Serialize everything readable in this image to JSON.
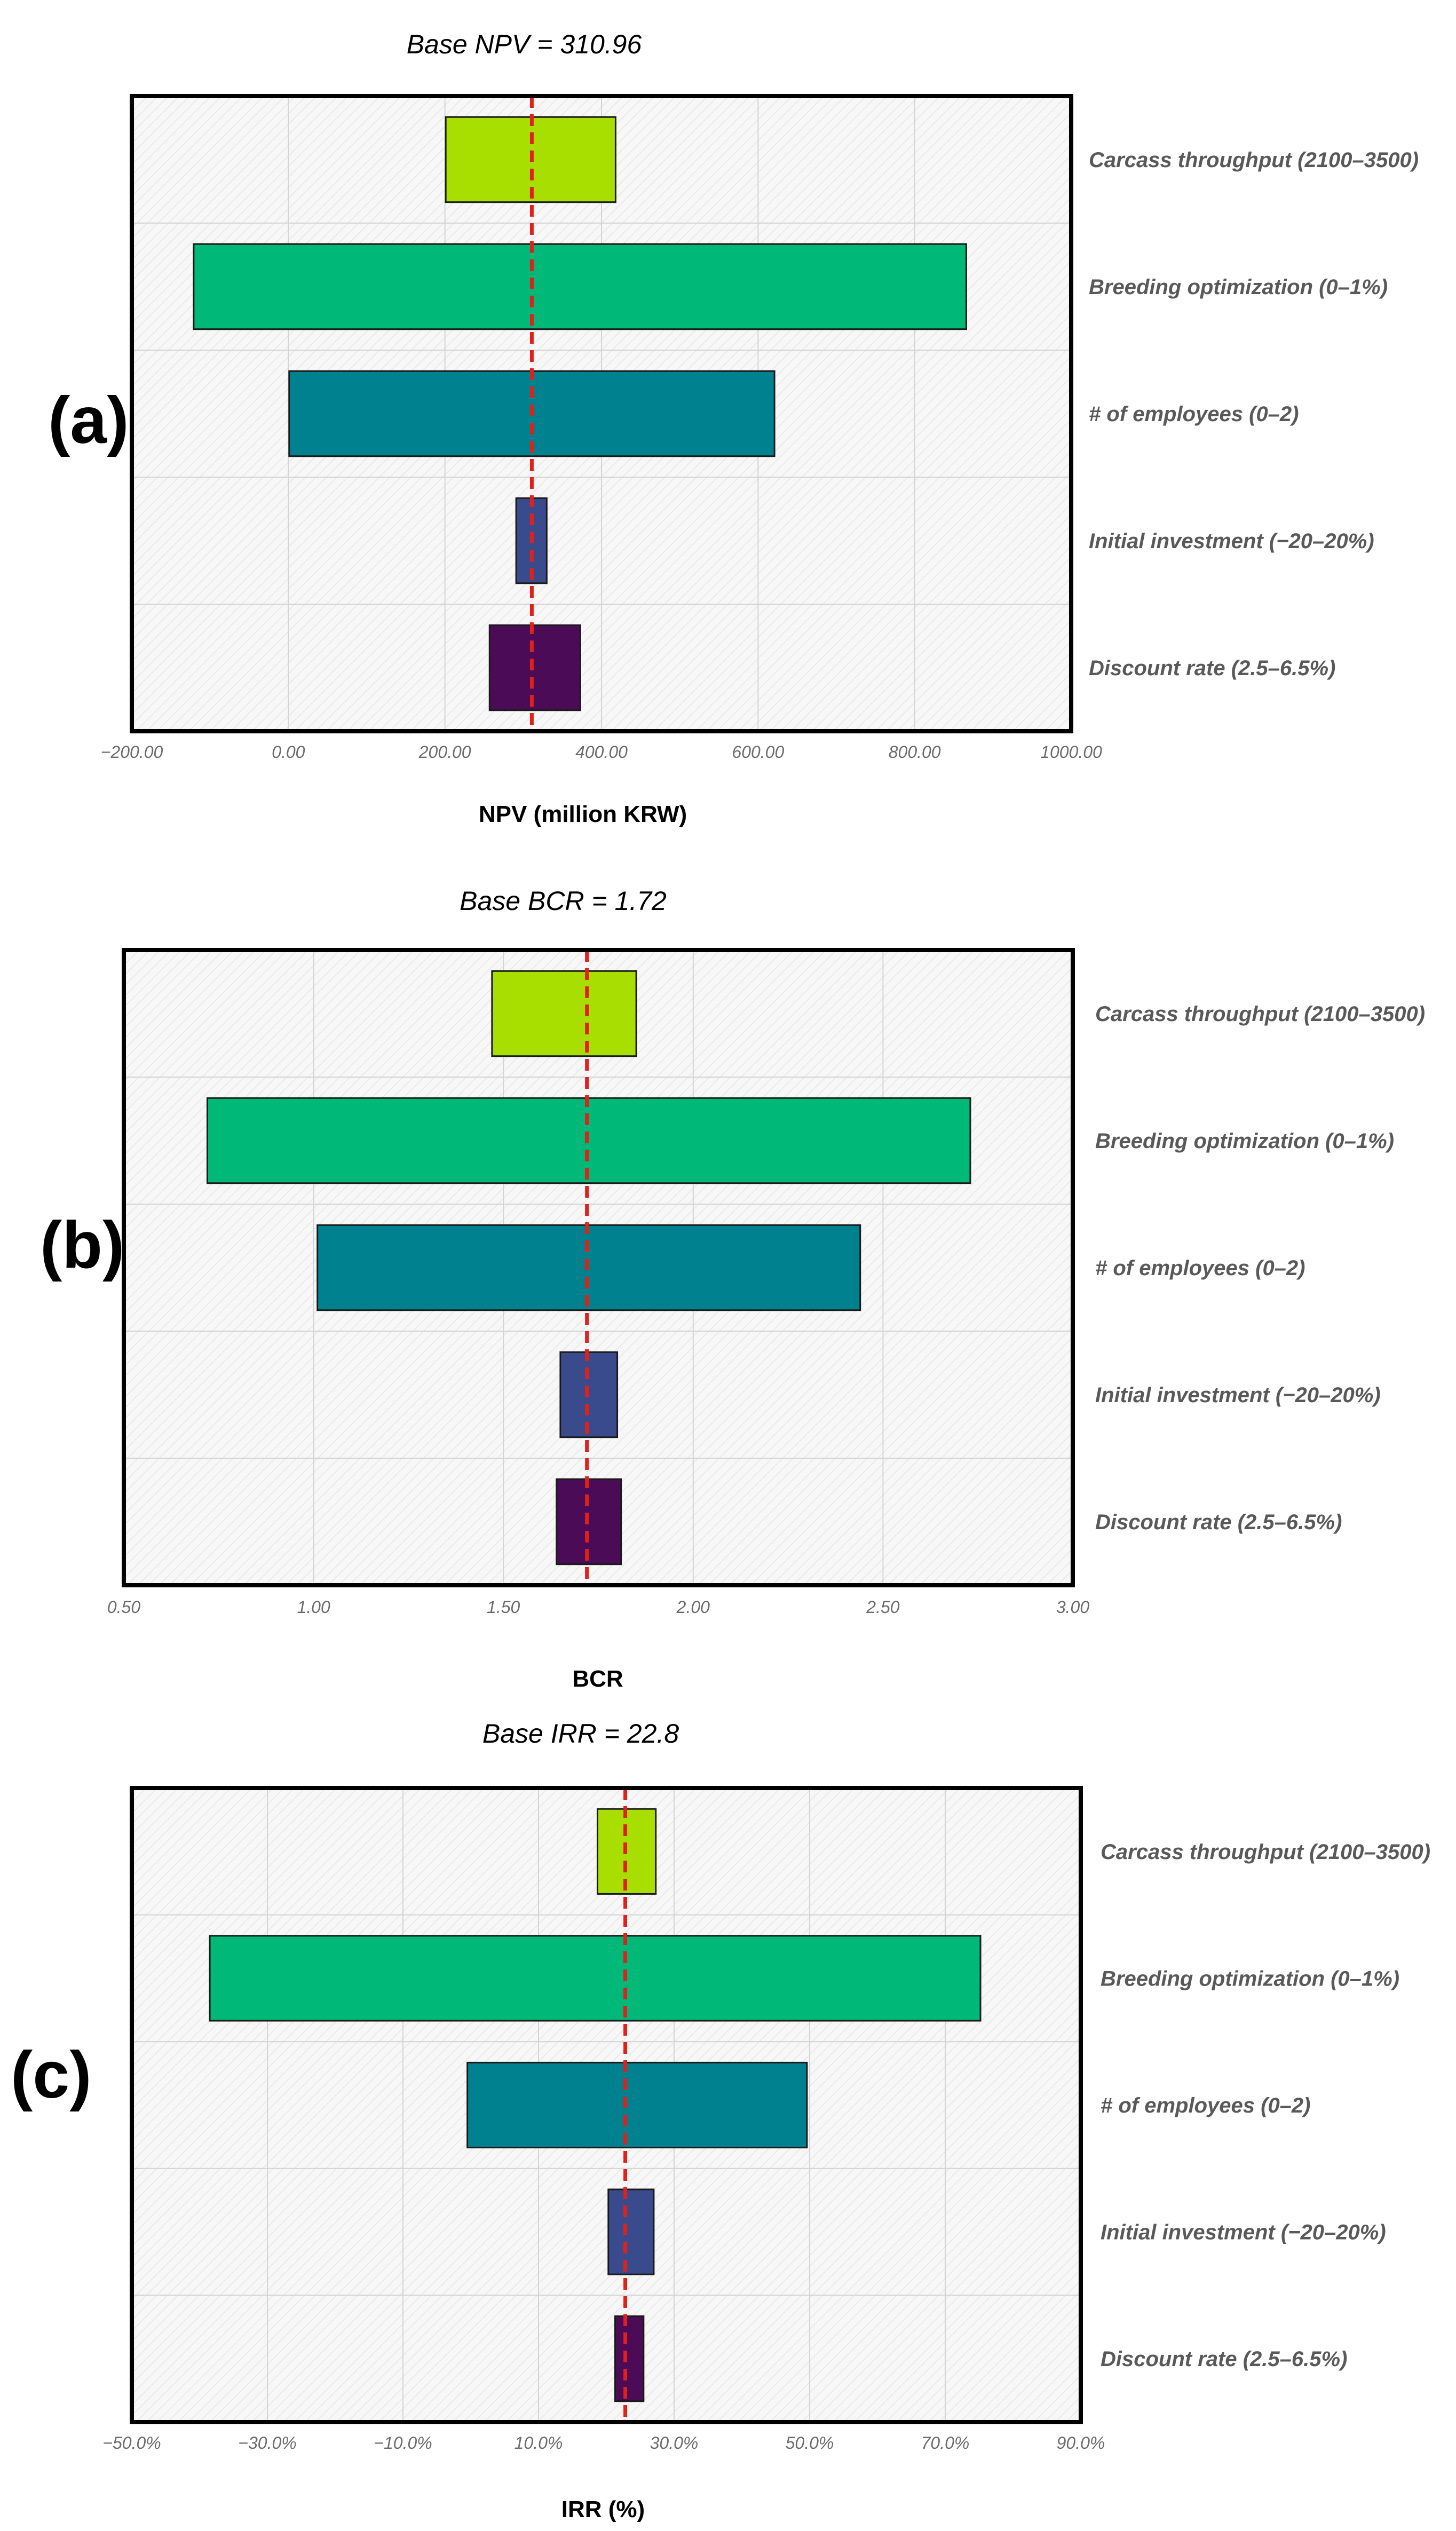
{
  "figure": {
    "panels": [
      "(a)",
      "(b)",
      "(c)"
    ]
  },
  "colors": {
    "base_line": "#e0201b",
    "frame": "#000000",
    "bar_stroke": "#1a1a1a",
    "label_text": "#595959",
    "axis_text": "#6b6b6b",
    "grid": "#d4d4d4",
    "plot_bg": "#f6f6f6"
  },
  "chart_data": [
    {
      "type": "bar",
      "orientation": "horizontal",
      "subtype": "tornado",
      "panel_label": "(a)",
      "title": "Base NPV = 310.96",
      "xlabel": "NPV (million KRW)",
      "ylabel": "",
      "base_value": 310.96,
      "xlim": [
        -200,
        1000
      ],
      "xticks": [
        -200,
        0,
        200,
        400,
        600,
        800,
        1000
      ],
      "xtick_labels": [
        "−200.00",
        "0.00",
        "200.00",
        "400.00",
        "600.00",
        "800.00",
        "1000.00"
      ],
      "categories": [
        "Carcass throughput (2100–3500)",
        "Breeding optimization (0–1%)",
        "# of employees (0–2)",
        "Initial investment (−20–20%)",
        "Discount rate (2.5–6.5%)"
      ],
      "bars": [
        {
          "low": 201,
          "high": 418,
          "color": "#a8df00"
        },
        {
          "low": -121,
          "high": 866,
          "color": "#00b878"
        },
        {
          "low": 1,
          "high": 621,
          "color": "#00818f"
        },
        {
          "low": 291,
          "high": 330,
          "color": "#3a4b8d"
        },
        {
          "low": 257,
          "high": 373,
          "color": "#4b0b57"
        }
      ]
    },
    {
      "type": "bar",
      "orientation": "horizontal",
      "subtype": "tornado",
      "panel_label": "(b)",
      "title": "Base BCR = 1.72",
      "xlabel": "BCR",
      "ylabel": "",
      "base_value": 1.72,
      "xlim": [
        0.5,
        3.0
      ],
      "xticks": [
        0.5,
        1.0,
        1.5,
        2.0,
        2.5,
        3.0
      ],
      "xtick_labels": [
        "0.50",
        "1.00",
        "1.50",
        "2.00",
        "2.50",
        "3.00"
      ],
      "categories": [
        "Carcass throughput (2100–3500)",
        "Breeding optimization (0–1%)",
        "# of employees (0–2)",
        "Initial investment (−20–20%)",
        "Discount rate (2.5–6.5%)"
      ],
      "bars": [
        {
          "low": 1.47,
          "high": 1.85,
          "color": "#a8df00"
        },
        {
          "low": 0.72,
          "high": 2.73,
          "color": "#00b878"
        },
        {
          "low": 1.01,
          "high": 2.44,
          "color": "#00818f"
        },
        {
          "low": 1.65,
          "high": 1.8,
          "color": "#3a4b8d"
        },
        {
          "low": 1.64,
          "high": 1.81,
          "color": "#4b0b57"
        }
      ]
    },
    {
      "type": "bar",
      "orientation": "horizontal",
      "subtype": "tornado",
      "panel_label": "(c)",
      "title": "Base IRR = 22.8",
      "xlabel": "IRR (%)",
      "ylabel": "",
      "base_value": 22.8,
      "xlim": [
        -50,
        90
      ],
      "xticks": [
        -50,
        -30,
        -10,
        10,
        30,
        50,
        70,
        90
      ],
      "xtick_labels": [
        "−50.0%",
        "−30.0%",
        "−10.0%",
        "10.0%",
        "30.0%",
        "50.0%",
        "70.0%",
        "90.0%"
      ],
      "categories": [
        "Carcass throughput (2100–3500)",
        "Breeding optimization (0–1%)",
        "# of employees (0–2)",
        "Initial investment (−20–20%)",
        "Discount rate (2.5–6.5%)"
      ],
      "bars": [
        {
          "low": 18.7,
          "high": 27.3,
          "color": "#a8df00"
        },
        {
          "low": -38.5,
          "high": 75.2,
          "color": "#00b878"
        },
        {
          "low": -0.5,
          "high": 49.6,
          "color": "#00818f"
        },
        {
          "low": 20.3,
          "high": 27.0,
          "color": "#3a4b8d"
        },
        {
          "low": 21.3,
          "high": 25.5,
          "color": "#4b0b57"
        }
      ]
    }
  ]
}
